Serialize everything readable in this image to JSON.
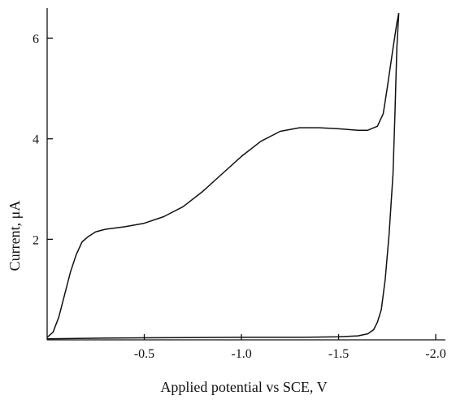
{
  "chart_data": {
    "type": "line",
    "title": "",
    "xlabel": "Applied potential vs SCE, V",
    "ylabel": "Current, μA",
    "x_reversed": true,
    "xlim": [
      0.0,
      -2.05
    ],
    "ylim": [
      0,
      6.6
    ],
    "x_ticks": [
      {
        "value": -0.5,
        "label": "-0.5"
      },
      {
        "value": -1.0,
        "label": "-1.0"
      },
      {
        "value": -1.5,
        "label": "-1.5"
      },
      {
        "value": -2.0,
        "label": "-2.0"
      }
    ],
    "y_ticks": [
      {
        "value": 2,
        "label": "2"
      },
      {
        "value": 4,
        "label": "4"
      },
      {
        "value": 6,
        "label": "6"
      }
    ],
    "grid": false,
    "legend": "none",
    "series": [
      {
        "role": "forward-scan",
        "x": [
          0.0,
          -0.03,
          -0.06,
          -0.09,
          -0.12,
          -0.15,
          -0.18,
          -0.21,
          -0.25,
          -0.3,
          -0.4,
          -0.5,
          -0.6,
          -0.7,
          -0.8,
          -0.9,
          -1.0,
          -1.1,
          -1.2,
          -1.3,
          -1.4,
          -1.5,
          -1.6,
          -1.65,
          -1.7,
          -1.73,
          -1.75,
          -1.78,
          -1.8,
          -1.81
        ],
        "y": [
          0.05,
          0.15,
          0.45,
          0.9,
          1.35,
          1.7,
          1.95,
          2.05,
          2.15,
          2.2,
          2.25,
          2.32,
          2.45,
          2.65,
          2.95,
          3.3,
          3.65,
          3.95,
          4.15,
          4.22,
          4.22,
          4.2,
          4.17,
          4.17,
          4.25,
          4.5,
          5.0,
          5.8,
          6.3,
          6.5
        ]
      },
      {
        "role": "return-scan",
        "x": [
          -1.81,
          -1.8,
          -1.79,
          -1.78,
          -1.76,
          -1.74,
          -1.72,
          -1.7,
          -1.68,
          -1.65,
          -1.6,
          -1.5,
          -1.3,
          -1.0,
          -0.5,
          -0.2,
          0.0
        ],
        "y": [
          6.5,
          5.8,
          4.5,
          3.3,
          2.1,
          1.2,
          0.6,
          0.35,
          0.2,
          0.12,
          0.08,
          0.06,
          0.05,
          0.05,
          0.04,
          0.03,
          0.02
        ]
      }
    ]
  }
}
